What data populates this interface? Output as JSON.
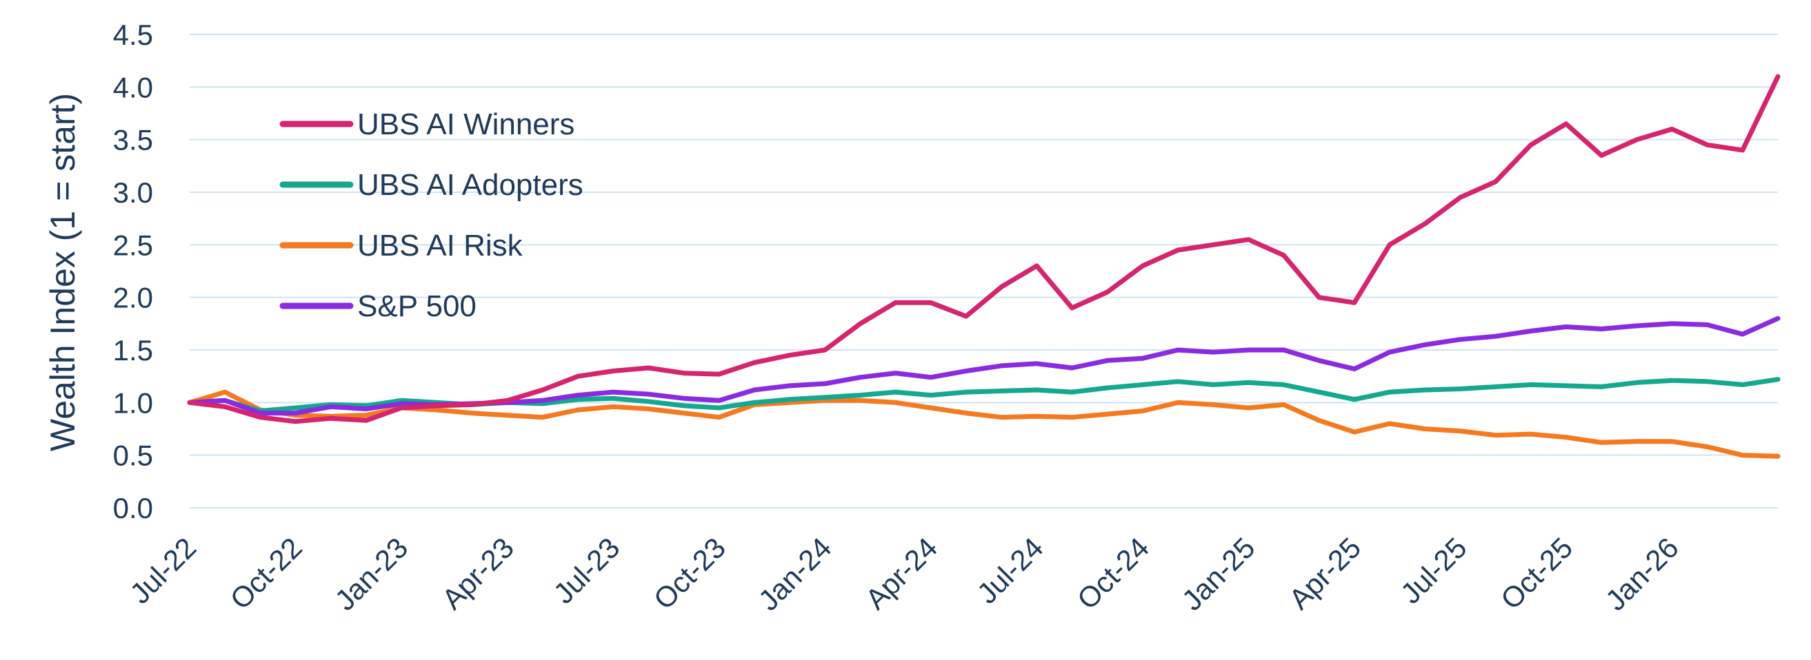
{
  "chart_data": {
    "type": "line",
    "ylabel": "Wealth Index (1 = start)",
    "xlabel": "",
    "ylim": [
      0,
      4.5
    ],
    "yticks": [
      "0.0",
      "0.5",
      "1.0",
      "1.5",
      "2.0",
      "2.5",
      "3.0",
      "3.5",
      "4.0",
      "4.5"
    ],
    "xticks": [
      "Jul-22",
      "Oct-22",
      "Jan-23",
      "Apr-23",
      "Jul-23",
      "Oct-23",
      "Jan-24",
      "Apr-24",
      "Jul-24",
      "Oct-24",
      "Jan-25",
      "Apr-25",
      "Jul-25",
      "Oct-25",
      "Jan-26"
    ],
    "xlim": [
      "2022-07",
      "2026-04"
    ],
    "grid": "horizontal",
    "legend_position": "upper-left",
    "series": [
      {
        "name": "UBS AI Winners",
        "color": "#d6256f",
        "points": [
          [
            "2022-07",
            1.0
          ],
          [
            "2022-08",
            0.96
          ],
          [
            "2022-09",
            0.86
          ],
          [
            "2022-10",
            0.82
          ],
          [
            "2022-11",
            0.85
          ],
          [
            "2022-12",
            0.83
          ],
          [
            "2023-01",
            0.95
          ],
          [
            "2023-02",
            0.97
          ],
          [
            "2023-03",
            0.98
          ],
          [
            "2023-04",
            1.02
          ],
          [
            "2023-05",
            1.12
          ],
          [
            "2023-06",
            1.25
          ],
          [
            "2023-07",
            1.3
          ],
          [
            "2023-08",
            1.33
          ],
          [
            "2023-09",
            1.28
          ],
          [
            "2023-10",
            1.27
          ],
          [
            "2023-11",
            1.38
          ],
          [
            "2023-12",
            1.45
          ],
          [
            "2024-01",
            1.5
          ],
          [
            "2024-02",
            1.75
          ],
          [
            "2024-03",
            1.95
          ],
          [
            "2024-04",
            1.95
          ],
          [
            "2024-05",
            1.82
          ],
          [
            "2024-06",
            2.1
          ],
          [
            "2024-07",
            2.3
          ],
          [
            "2024-08",
            1.9
          ],
          [
            "2024-09",
            2.05
          ],
          [
            "2024-10",
            2.3
          ],
          [
            "2024-11",
            2.45
          ],
          [
            "2024-12",
            2.5
          ],
          [
            "2025-01",
            2.55
          ],
          [
            "2025-02",
            2.4
          ],
          [
            "2025-03",
            2.0
          ],
          [
            "2025-04",
            1.95
          ],
          [
            "2025-05",
            2.5
          ],
          [
            "2025-06",
            2.7
          ],
          [
            "2025-07",
            2.95
          ],
          [
            "2025-08",
            3.1
          ],
          [
            "2025-09",
            3.45
          ],
          [
            "2025-10",
            3.65
          ],
          [
            "2025-11",
            3.35
          ],
          [
            "2025-12",
            3.5
          ],
          [
            "2026-01",
            3.6
          ],
          [
            "2026-02",
            3.45
          ],
          [
            "2026-03",
            3.4
          ],
          [
            "2026-04",
            4.1
          ]
        ]
      },
      {
        "name": "UBS AI Adopters",
        "color": "#13a88f",
        "points": [
          [
            "2022-07",
            1.0
          ],
          [
            "2022-08",
            1.02
          ],
          [
            "2022-09",
            0.92
          ],
          [
            "2022-10",
            0.95
          ],
          [
            "2022-11",
            0.98
          ],
          [
            "2022-12",
            0.97
          ],
          [
            "2023-01",
            1.02
          ],
          [
            "2023-02",
            1.0
          ],
          [
            "2023-03",
            0.98
          ],
          [
            "2023-04",
            1.0
          ],
          [
            "2023-05",
            0.99
          ],
          [
            "2023-06",
            1.03
          ],
          [
            "2023-07",
            1.04
          ],
          [
            "2023-08",
            1.01
          ],
          [
            "2023-09",
            0.97
          ],
          [
            "2023-10",
            0.95
          ],
          [
            "2023-11",
            1.0
          ],
          [
            "2023-12",
            1.03
          ],
          [
            "2024-01",
            1.05
          ],
          [
            "2024-02",
            1.07
          ],
          [
            "2024-03",
            1.1
          ],
          [
            "2024-04",
            1.07
          ],
          [
            "2024-05",
            1.1
          ],
          [
            "2024-06",
            1.11
          ],
          [
            "2024-07",
            1.12
          ],
          [
            "2024-08",
            1.1
          ],
          [
            "2024-09",
            1.14
          ],
          [
            "2024-10",
            1.17
          ],
          [
            "2024-11",
            1.2
          ],
          [
            "2024-12",
            1.17
          ],
          [
            "2025-01",
            1.19
          ],
          [
            "2025-02",
            1.17
          ],
          [
            "2025-03",
            1.1
          ],
          [
            "2025-04",
            1.03
          ],
          [
            "2025-05",
            1.1
          ],
          [
            "2025-06",
            1.12
          ],
          [
            "2025-07",
            1.13
          ],
          [
            "2025-08",
            1.15
          ],
          [
            "2025-09",
            1.17
          ],
          [
            "2025-10",
            1.16
          ],
          [
            "2025-11",
            1.15
          ],
          [
            "2025-12",
            1.19
          ],
          [
            "2026-01",
            1.21
          ],
          [
            "2026-02",
            1.2
          ],
          [
            "2026-03",
            1.17
          ],
          [
            "2026-04",
            1.22
          ]
        ]
      },
      {
        "name": "UBS AI Risk",
        "color": "#f57a1f",
        "points": [
          [
            "2022-07",
            1.0
          ],
          [
            "2022-08",
            1.1
          ],
          [
            "2022-09",
            0.93
          ],
          [
            "2022-10",
            0.88
          ],
          [
            "2022-11",
            0.87
          ],
          [
            "2022-12",
            0.88
          ],
          [
            "2023-01",
            0.95
          ],
          [
            "2023-02",
            0.93
          ],
          [
            "2023-03",
            0.9
          ],
          [
            "2023-04",
            0.88
          ],
          [
            "2023-05",
            0.86
          ],
          [
            "2023-06",
            0.93
          ],
          [
            "2023-07",
            0.96
          ],
          [
            "2023-08",
            0.94
          ],
          [
            "2023-09",
            0.9
          ],
          [
            "2023-10",
            0.86
          ],
          [
            "2023-11",
            0.98
          ],
          [
            "2023-12",
            1.0
          ],
          [
            "2024-01",
            1.02
          ],
          [
            "2024-02",
            1.02
          ],
          [
            "2024-03",
            1.0
          ],
          [
            "2024-04",
            0.95
          ],
          [
            "2024-05",
            0.9
          ],
          [
            "2024-06",
            0.86
          ],
          [
            "2024-07",
            0.87
          ],
          [
            "2024-08",
            0.86
          ],
          [
            "2024-09",
            0.89
          ],
          [
            "2024-10",
            0.92
          ],
          [
            "2024-11",
            1.0
          ],
          [
            "2024-12",
            0.98
          ],
          [
            "2025-01",
            0.95
          ],
          [
            "2025-02",
            0.98
          ],
          [
            "2025-03",
            0.83
          ],
          [
            "2025-04",
            0.72
          ],
          [
            "2025-05",
            0.8
          ],
          [
            "2025-06",
            0.75
          ],
          [
            "2025-07",
            0.73
          ],
          [
            "2025-08",
            0.69
          ],
          [
            "2025-09",
            0.7
          ],
          [
            "2025-10",
            0.67
          ],
          [
            "2025-11",
            0.62
          ],
          [
            "2025-12",
            0.63
          ],
          [
            "2026-01",
            0.63
          ],
          [
            "2026-02",
            0.58
          ],
          [
            "2026-03",
            0.5
          ],
          [
            "2026-04",
            0.49
          ]
        ]
      },
      {
        "name": "S&P 500",
        "color": "#8a2be2",
        "points": [
          [
            "2022-07",
            1.0
          ],
          [
            "2022-08",
            1.02
          ],
          [
            "2022-09",
            0.9
          ],
          [
            "2022-10",
            0.9
          ],
          [
            "2022-11",
            0.96
          ],
          [
            "2022-12",
            0.94
          ],
          [
            "2023-01",
            0.99
          ],
          [
            "2023-02",
            0.98
          ],
          [
            "2023-03",
            0.99
          ],
          [
            "2023-04",
            1.0
          ],
          [
            "2023-05",
            1.02
          ],
          [
            "2023-06",
            1.07
          ],
          [
            "2023-07",
            1.1
          ],
          [
            "2023-08",
            1.08
          ],
          [
            "2023-09",
            1.04
          ],
          [
            "2023-10",
            1.02
          ],
          [
            "2023-11",
            1.12
          ],
          [
            "2023-12",
            1.16
          ],
          [
            "2024-01",
            1.18
          ],
          [
            "2024-02",
            1.24
          ],
          [
            "2024-03",
            1.28
          ],
          [
            "2024-04",
            1.24
          ],
          [
            "2024-05",
            1.3
          ],
          [
            "2024-06",
            1.35
          ],
          [
            "2024-07",
            1.37
          ],
          [
            "2024-08",
            1.33
          ],
          [
            "2024-09",
            1.4
          ],
          [
            "2024-10",
            1.42
          ],
          [
            "2024-11",
            1.5
          ],
          [
            "2024-12",
            1.48
          ],
          [
            "2025-01",
            1.5
          ],
          [
            "2025-02",
            1.5
          ],
          [
            "2025-03",
            1.4
          ],
          [
            "2025-04",
            1.32
          ],
          [
            "2025-05",
            1.48
          ],
          [
            "2025-06",
            1.55
          ],
          [
            "2025-07",
            1.6
          ],
          [
            "2025-08",
            1.63
          ],
          [
            "2025-09",
            1.68
          ],
          [
            "2025-10",
            1.72
          ],
          [
            "2025-11",
            1.7
          ],
          [
            "2025-12",
            1.73
          ],
          [
            "2026-01",
            1.75
          ],
          [
            "2026-02",
            1.74
          ],
          [
            "2026-03",
            1.65
          ],
          [
            "2026-04",
            1.8
          ]
        ]
      }
    ]
  }
}
